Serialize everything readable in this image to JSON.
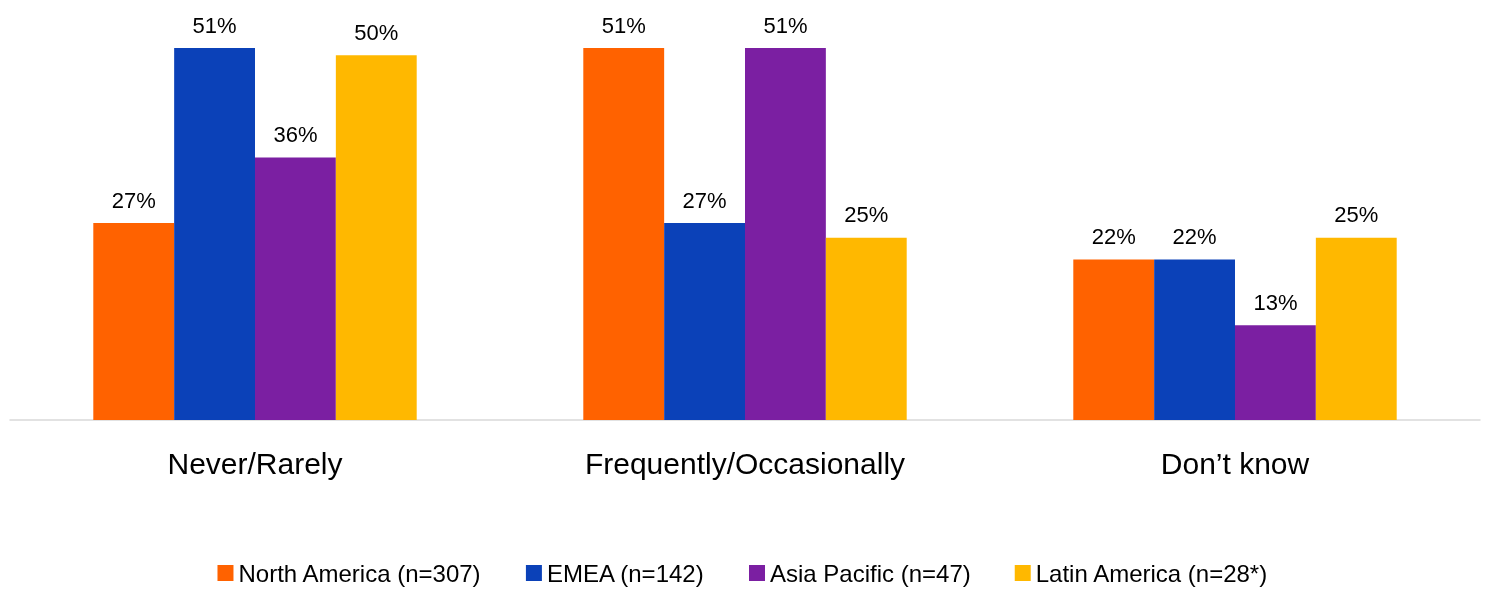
{
  "chart_data": {
    "type": "bar",
    "categories": [
      "Never/Rarely",
      "Frequently/Occasionally",
      "Don’t know"
    ],
    "series": [
      {
        "name": "North America (n=307)",
        "color": "#ff6200",
        "values": [
          27,
          51,
          22
        ],
        "value_labels": [
          "27%",
          "51%",
          "22%"
        ]
      },
      {
        "name": "EMEA (n=142)",
        "color": "#0b41b8",
        "values": [
          51,
          27,
          22
        ],
        "value_labels": [
          "51%",
          "27%",
          "22%"
        ]
      },
      {
        "name": "Asia Pacific (n=47)",
        "color": "#7b1fa2",
        "values": [
          36,
          51,
          13
        ],
        "value_labels": [
          "36%",
          "51%",
          "13%"
        ]
      },
      {
        "name": "Latin America (n=28*)",
        "color": "#ffb800",
        "values": [
          50,
          25,
          25
        ],
        "value_labels": [
          "50%",
          "25%",
          "25%"
        ]
      }
    ],
    "legend": "bottom",
    "tick_labels": "x"
  }
}
